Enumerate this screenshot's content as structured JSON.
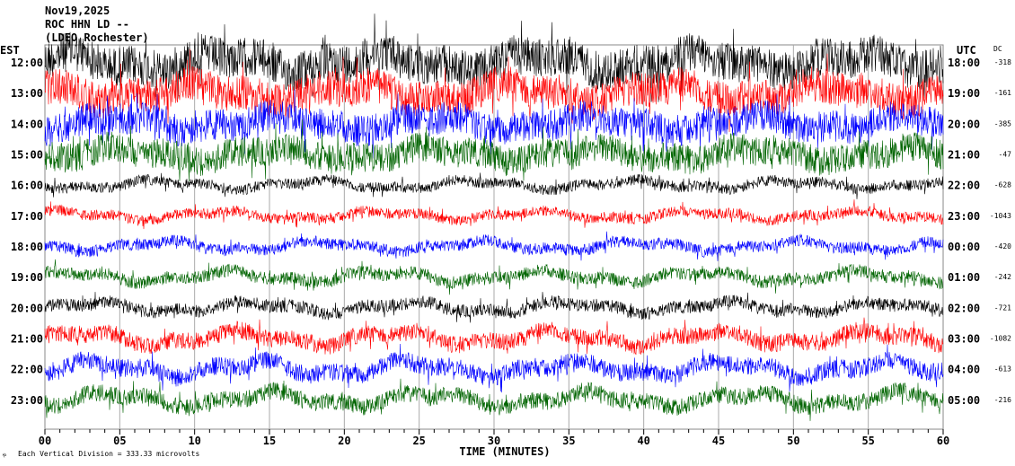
{
  "chart_data": {
    "type": "line",
    "title_lines": [
      "Nov19,2025",
      "ROC HHN LD --",
      "(LDEO Rochester)"
    ],
    "left_axis_label": "EST",
    "right_axis_label": "UTC",
    "dc_label": "DC",
    "xlabel": "TIME (MINUTES)",
    "xlim": [
      0,
      60
    ],
    "x_ticks": [
      "00",
      "05",
      "10",
      "15",
      "20",
      "25",
      "30",
      "35",
      "40",
      "45",
      "50",
      "55",
      "60"
    ],
    "footer": "Each Vertical Division =  333.33 microvolts",
    "footer_mark": "ゃ",
    "colors": [
      "#000000",
      "#ff0000",
      "#0000ff",
      "#006400"
    ],
    "rows": [
      {
        "est": "12:00",
        "utc": "18:00",
        "dc": "-318",
        "amp": 1.0
      },
      {
        "est": "13:00",
        "utc": "19:00",
        "dc": "-161",
        "amp": 0.9
      },
      {
        "est": "14:00",
        "utc": "20:00",
        "dc": "-385",
        "amp": 0.8
      },
      {
        "est": "15:00",
        "utc": "21:00",
        "dc": "-47",
        "amp": 0.75
      },
      {
        "est": "16:00",
        "utc": "22:00",
        "dc": "-628",
        "amp": 0.5
      },
      {
        "est": "17:00",
        "utc": "23:00",
        "dc": "-1043",
        "amp": 0.5
      },
      {
        "est": "18:00",
        "utc": "00:00",
        "dc": "-420",
        "amp": 0.55
      },
      {
        "est": "19:00",
        "utc": "01:00",
        "dc": "-242",
        "amp": 0.6
      },
      {
        "est": "20:00",
        "utc": "02:00",
        "dc": "-721",
        "amp": 0.6
      },
      {
        "est": "21:00",
        "utc": "03:00",
        "dc": "-1082",
        "amp": 0.8
      },
      {
        "est": "22:00",
        "utc": "04:00",
        "dc": "-613",
        "amp": 0.85
      },
      {
        "est": "23:00",
        "utc": "05:00",
        "dc": "-216",
        "amp": 0.8
      }
    ]
  }
}
